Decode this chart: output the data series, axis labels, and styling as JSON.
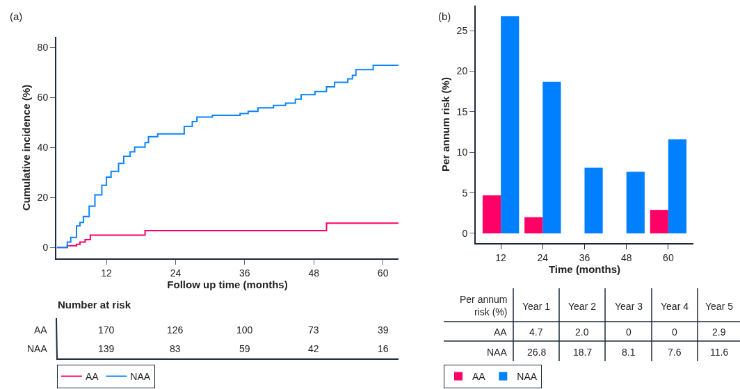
{
  "chart_data": [
    {
      "type": "step",
      "title": "(a)",
      "xlabel": "Follow up time (months)",
      "ylabel": "Cumulative incidence (%)",
      "xlim": [
        3.3,
        62.7
      ],
      "xticks": [
        12,
        24,
        36,
        48,
        60
      ],
      "ylim": [
        -4.4,
        84.2
      ],
      "yticks": [
        0,
        20,
        40,
        60,
        80
      ],
      "legend": "bottom left",
      "line_style": "solid",
      "series": [
        {
          "name": "AA",
          "color": "#ff0066",
          "x": [
            3.4,
            5.2,
            6.8,
            7.4,
            8.3,
            9.2,
            18.7,
            50.2,
            62.7
          ],
          "values": [
            0,
            0.7,
            1.2,
            2.1,
            3.1,
            4.9,
            6.7,
            9.7,
            9.7
          ]
        },
        {
          "name": "NAA",
          "color": "#0a84ff",
          "x": [
            3.4,
            5.2,
            5.8,
            6.8,
            7.4,
            8.0,
            9.0,
            10.0,
            11.2,
            12.0,
            12.8,
            14.1,
            15.0,
            16.1,
            16.9,
            18.7,
            19.3,
            20.9,
            25.5,
            26.9,
            27.7,
            30.4,
            35.2,
            36.6,
            38.3,
            41.0,
            43.1,
            44.8,
            45.8,
            48.2,
            50.2,
            51.6,
            53.9,
            54.7,
            55.3,
            58.3,
            62.7
          ],
          "values": [
            0,
            2.1,
            4,
            8.6,
            10,
            12.3,
            16.5,
            21,
            24.8,
            28.1,
            30.4,
            33.6,
            36.4,
            38.2,
            40.1,
            41.9,
            44.3,
            45.4,
            48.4,
            50.3,
            52.1,
            52.8,
            53.5,
            54.4,
            55.8,
            56.8,
            57.7,
            59.3,
            61.1,
            62.3,
            64.2,
            66.0,
            67.4,
            68.8,
            71.1,
            72.8,
            72.8
          ]
        }
      ]
    },
    {
      "type": "other",
      "title": "Number at risk",
      "y_categories": [
        "AA",
        "NAA"
      ],
      "cell_labels": [
        [
          "170",
          "126",
          "100",
          "73",
          "39"
        ],
        [
          "139",
          "83",
          "59",
          "42",
          "16"
        ]
      ]
    },
    {
      "type": "bar",
      "title": "(b)",
      "xlabel": "Time (months)",
      "ylabel": "Per annum risk (%)",
      "categories": [
        "12",
        "24",
        "36",
        "48",
        "60"
      ],
      "ylim": [
        -1.2,
        28.1
      ],
      "yticks": [
        0,
        5,
        10,
        15,
        20,
        25
      ],
      "legend": "bottom left",
      "series": [
        {
          "name": "AA",
          "color": "#ff0066",
          "values": [
            4.7,
            2.0,
            0,
            0,
            2.9
          ]
        },
        {
          "name": "NAA",
          "color": "#0080ff",
          "values": [
            26.8,
            18.7,
            8.1,
            7.6,
            11.6
          ]
        }
      ]
    },
    {
      "type": "other",
      "title": "Per annum risk (%)",
      "categories": [
        "Year 1",
        "Year 2",
        "Year 3",
        "Year 4",
        "Year 5"
      ],
      "y_categories": [
        "AA",
        "NAA"
      ],
      "cell_labels": [
        [
          "4.7",
          "2.0",
          "0",
          "0",
          "2.9"
        ],
        [
          "26.8",
          "18.7",
          "8.1",
          "7.6",
          "11.6"
        ]
      ]
    }
  ]
}
